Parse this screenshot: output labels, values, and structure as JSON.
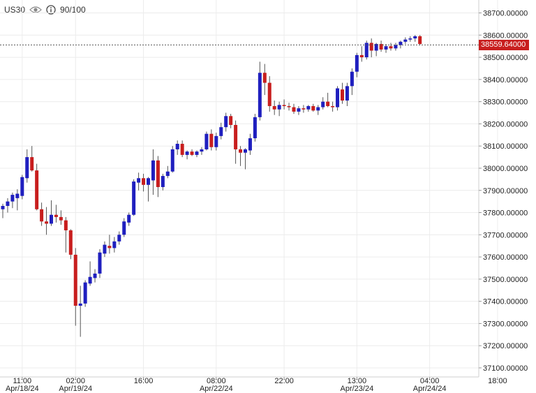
{
  "header": {
    "symbol": "US30",
    "counter": "90/100",
    "icons": [
      "eye-icon",
      "info-icon"
    ]
  },
  "current_price": "38559.64000",
  "colors": {
    "up": "#1f1fbf",
    "down": "#c81e1e",
    "wick": "#555555",
    "grid": "#ececec",
    "price_tag": "#c81e1e"
  },
  "chart_data": {
    "type": "candlestick",
    "title": "",
    "xlabel": "",
    "ylabel": "",
    "ylim": [
      37070,
      38770
    ],
    "yticks": [
      "38700.00000",
      "38600.00000",
      "38500.00000",
      "38400.00000",
      "38300.00000",
      "38200.00000",
      "38100.00000",
      "38000.00000",
      "37900.00000",
      "37800.00000",
      "37700.00000",
      "37600.00000",
      "37500.00000",
      "37400.00000",
      "37300.00000",
      "37200.00000",
      "37100.00000"
    ],
    "ytick_values": [
      38700,
      38600,
      38500,
      38400,
      38300,
      38200,
      38100,
      38000,
      37900,
      37800,
      37700,
      37600,
      37500,
      37400,
      37300,
      37200,
      37100
    ],
    "xticks": [
      {
        "time": "11:00",
        "date": "Apr/18/24",
        "index": 4
      },
      {
        "time": "02:00",
        "date": "Apr/19/24",
        "index": 15
      },
      {
        "time": "16:00",
        "date": "",
        "index": 29
      },
      {
        "time": "08:00",
        "date": "Apr/22/24",
        "index": 44
      },
      {
        "time": "22:00",
        "date": "",
        "index": 58
      },
      {
        "time": "13:00",
        "date": "Apr/23/24",
        "index": 73
      },
      {
        "time": "04:00",
        "date": "Apr/24/24",
        "index": 88
      },
      {
        "time": "18:00",
        "date": "",
        "index": 102
      }
    ],
    "candles": [
      {
        "o": 37815,
        "h": 37840,
        "l": 37775,
        "c": 37830
      },
      {
        "o": 37830,
        "h": 37865,
        "l": 37800,
        "c": 37850
      },
      {
        "o": 37850,
        "h": 37890,
        "l": 37820,
        "c": 37880
      },
      {
        "o": 37865,
        "h": 37905,
        "l": 37810,
        "c": 37885
      },
      {
        "o": 37875,
        "h": 37970,
        "l": 37860,
        "c": 37960
      },
      {
        "o": 37955,
        "h": 38085,
        "l": 37935,
        "c": 38050
      },
      {
        "o": 38050,
        "h": 38100,
        "l": 37985,
        "c": 37990
      },
      {
        "o": 37990,
        "h": 38020,
        "l": 37810,
        "c": 37815
      },
      {
        "o": 37815,
        "h": 37845,
        "l": 37740,
        "c": 37760
      },
      {
        "o": 37760,
        "h": 37825,
        "l": 37700,
        "c": 37750
      },
      {
        "o": 37750,
        "h": 37855,
        "l": 37740,
        "c": 37790
      },
      {
        "o": 37790,
        "h": 37835,
        "l": 37755,
        "c": 37780
      },
      {
        "o": 37780,
        "h": 37810,
        "l": 37745,
        "c": 37765
      },
      {
        "o": 37765,
        "h": 37780,
        "l": 37620,
        "c": 37720
      },
      {
        "o": 37720,
        "h": 37725,
        "l": 37590,
        "c": 37610
      },
      {
        "o": 37610,
        "h": 37640,
        "l": 37290,
        "c": 37380
      },
      {
        "o": 37380,
        "h": 37470,
        "l": 37240,
        "c": 37390
      },
      {
        "o": 37390,
        "h": 37495,
        "l": 37375,
        "c": 37485
      },
      {
        "o": 37480,
        "h": 37580,
        "l": 37470,
        "c": 37510
      },
      {
        "o": 37505,
        "h": 37545,
        "l": 37485,
        "c": 37525
      },
      {
        "o": 37525,
        "h": 37635,
        "l": 37505,
        "c": 37620
      },
      {
        "o": 37615,
        "h": 37670,
        "l": 37600,
        "c": 37655
      },
      {
        "o": 37650,
        "h": 37700,
        "l": 37615,
        "c": 37640
      },
      {
        "o": 37640,
        "h": 37690,
        "l": 37620,
        "c": 37670
      },
      {
        "o": 37670,
        "h": 37715,
        "l": 37655,
        "c": 37700
      },
      {
        "o": 37700,
        "h": 37775,
        "l": 37690,
        "c": 37760
      },
      {
        "o": 37755,
        "h": 37800,
        "l": 37740,
        "c": 37790
      },
      {
        "o": 37790,
        "h": 37950,
        "l": 37785,
        "c": 37940
      },
      {
        "o": 37935,
        "h": 37980,
        "l": 37900,
        "c": 37955
      },
      {
        "o": 37955,
        "h": 37975,
        "l": 37895,
        "c": 37925
      },
      {
        "o": 37925,
        "h": 37960,
        "l": 37850,
        "c": 37955
      },
      {
        "o": 37945,
        "h": 38085,
        "l": 37880,
        "c": 38035
      },
      {
        "o": 38035,
        "h": 38055,
        "l": 37870,
        "c": 37915
      },
      {
        "o": 37915,
        "h": 37975,
        "l": 37900,
        "c": 37965
      },
      {
        "o": 37965,
        "h": 38010,
        "l": 37955,
        "c": 37985
      },
      {
        "o": 37985,
        "h": 38100,
        "l": 37980,
        "c": 38085
      },
      {
        "o": 38085,
        "h": 38125,
        "l": 38060,
        "c": 38110
      },
      {
        "o": 38110,
        "h": 38125,
        "l": 38050,
        "c": 38060
      },
      {
        "o": 38060,
        "h": 38080,
        "l": 38040,
        "c": 38075
      },
      {
        "o": 38075,
        "h": 38085,
        "l": 38055,
        "c": 38060
      },
      {
        "o": 38060,
        "h": 38080,
        "l": 38050,
        "c": 38075
      },
      {
        "o": 38075,
        "h": 38095,
        "l": 38060,
        "c": 38085
      },
      {
        "o": 38085,
        "h": 38165,
        "l": 38080,
        "c": 38155
      },
      {
        "o": 38155,
        "h": 38175,
        "l": 38080,
        "c": 38095
      },
      {
        "o": 38095,
        "h": 38160,
        "l": 38080,
        "c": 38145
      },
      {
        "o": 38145,
        "h": 38205,
        "l": 38130,
        "c": 38185
      },
      {
        "o": 38185,
        "h": 38250,
        "l": 38165,
        "c": 38235
      },
      {
        "o": 38235,
        "h": 38245,
        "l": 38180,
        "c": 38195
      },
      {
        "o": 38195,
        "h": 38215,
        "l": 38020,
        "c": 38085
      },
      {
        "o": 38085,
        "h": 38100,
        "l": 38010,
        "c": 38070
      },
      {
        "o": 38070,
        "h": 38090,
        "l": 37995,
        "c": 38085
      },
      {
        "o": 38080,
        "h": 38155,
        "l": 38060,
        "c": 38135
      },
      {
        "o": 38135,
        "h": 38245,
        "l": 38120,
        "c": 38230
      },
      {
        "o": 38230,
        "h": 38480,
        "l": 38215,
        "c": 38430
      },
      {
        "o": 38430,
        "h": 38470,
        "l": 38330,
        "c": 38385
      },
      {
        "o": 38385,
        "h": 38415,
        "l": 38255,
        "c": 38280
      },
      {
        "o": 38280,
        "h": 38305,
        "l": 38240,
        "c": 38265
      },
      {
        "o": 38265,
        "h": 38300,
        "l": 38235,
        "c": 38285
      },
      {
        "o": 38285,
        "h": 38310,
        "l": 38265,
        "c": 38280
      },
      {
        "o": 38280,
        "h": 38295,
        "l": 38260,
        "c": 38275
      },
      {
        "o": 38275,
        "h": 38290,
        "l": 38245,
        "c": 38255
      },
      {
        "o": 38255,
        "h": 38280,
        "l": 38240,
        "c": 38270
      },
      {
        "o": 38270,
        "h": 38285,
        "l": 38250,
        "c": 38265
      },
      {
        "o": 38265,
        "h": 38285,
        "l": 38255,
        "c": 38280
      },
      {
        "o": 38280,
        "h": 38290,
        "l": 38255,
        "c": 38260
      },
      {
        "o": 38260,
        "h": 38285,
        "l": 38240,
        "c": 38275
      },
      {
        "o": 38275,
        "h": 38320,
        "l": 38265,
        "c": 38300
      },
      {
        "o": 38300,
        "h": 38340,
        "l": 38275,
        "c": 38280
      },
      {
        "o": 38280,
        "h": 38300,
        "l": 38255,
        "c": 38275
      },
      {
        "o": 38275,
        "h": 38370,
        "l": 38260,
        "c": 38360
      },
      {
        "o": 38355,
        "h": 38385,
        "l": 38290,
        "c": 38305
      },
      {
        "o": 38305,
        "h": 38385,
        "l": 38280,
        "c": 38370
      },
      {
        "o": 38370,
        "h": 38450,
        "l": 38330,
        "c": 38435
      },
      {
        "o": 38435,
        "h": 38520,
        "l": 38410,
        "c": 38510
      },
      {
        "o": 38510,
        "h": 38550,
        "l": 38480,
        "c": 38500
      },
      {
        "o": 38500,
        "h": 38575,
        "l": 38490,
        "c": 38565
      },
      {
        "o": 38565,
        "h": 38585,
        "l": 38500,
        "c": 38530
      },
      {
        "o": 38530,
        "h": 38565,
        "l": 38505,
        "c": 38560
      },
      {
        "o": 38560,
        "h": 38575,
        "l": 38525,
        "c": 38535
      },
      {
        "o": 38535,
        "h": 38560,
        "l": 38520,
        "c": 38550
      },
      {
        "o": 38550,
        "h": 38565,
        "l": 38530,
        "c": 38540
      },
      {
        "o": 38540,
        "h": 38565,
        "l": 38530,
        "c": 38555
      },
      {
        "o": 38555,
        "h": 38575,
        "l": 38540,
        "c": 38570
      },
      {
        "o": 38570,
        "h": 38590,
        "l": 38560,
        "c": 38580
      },
      {
        "o": 38580,
        "h": 38595,
        "l": 38570,
        "c": 38585
      },
      {
        "o": 38585,
        "h": 38600,
        "l": 38570,
        "c": 38595
      },
      {
        "o": 38595,
        "h": 38600,
        "l": 38555,
        "c": 38560
      }
    ]
  }
}
